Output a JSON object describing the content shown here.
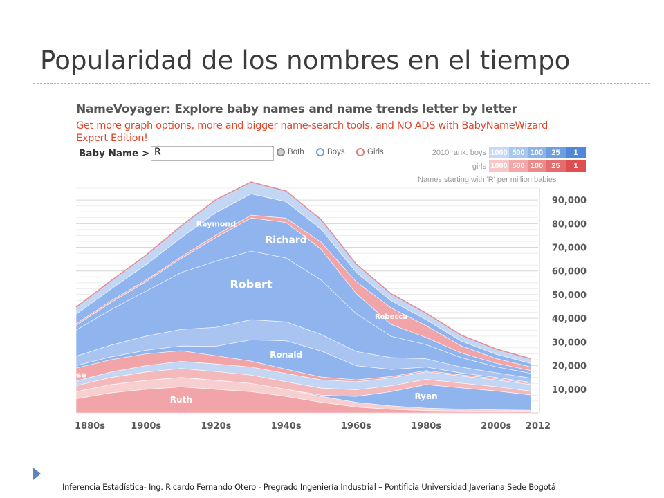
{
  "slide": {
    "title": "Popularidad de los nombres en el tiempo",
    "footer": "Inferencia Estadística- Ing. Ricardo Fernando Otero - Pregrado Ingeniería Industrial – Pontificia Universidad Javeriana Sede Bogotá",
    "page_number": ""
  },
  "namevoyager": {
    "brand": "NameVoyager",
    "tagline": ": Explore baby names and name trends letter by letter",
    "promo": "Get more graph options, more and bigger name-search tools, and NO ADS with BabyNameWizard Expert Edition!",
    "search_label": "Baby Name >",
    "search_value": "R",
    "filters": {
      "both": "Both",
      "boys": "Boys",
      "girls": "Girls"
    },
    "rank": {
      "boys_label": "2010 rank:  boys",
      "girls_label": "girls",
      "cells": [
        "1000",
        "500",
        "100",
        "25",
        "1"
      ],
      "boys_colors": [
        "#c4d9f5",
        "#a8c7ef",
        "#8ab4e8",
        "#6d9fe0",
        "#4f88d8"
      ],
      "girls_colors": [
        "#f7c6c6",
        "#f2a8a8",
        "#ec8a8a",
        "#e56c6c",
        "#de4e4e"
      ]
    },
    "units_caption": "Names starting with 'R' per million babies"
  },
  "colors": {
    "boy": "#8fb4ee",
    "girl": "#f2a5a8",
    "light_boy": "#c3d6f4",
    "light_girl": "#f8cfd0",
    "outline": "#e88a90"
  },
  "chart_data": {
    "type": "area",
    "stacked": true,
    "title": "",
    "xlabel": "",
    "ylabel": "",
    "x": [
      1880,
      1890,
      1900,
      1910,
      1920,
      1930,
      1940,
      1950,
      1960,
      1970,
      1980,
      1990,
      2000,
      2010
    ],
    "x_tick_labels": [
      "1880s",
      "1900s",
      "1920s",
      "1940s",
      "1960s",
      "1980s",
      "2000s",
      "2012"
    ],
    "x_tick_values": [
      1880,
      1900,
      1920,
      1940,
      1960,
      1980,
      2000,
      2012
    ],
    "ylim": [
      0,
      95000
    ],
    "y_ticks": [
      10000,
      20000,
      30000,
      40000,
      50000,
      60000,
      70000,
      80000,
      90000
    ],
    "y_tick_labels": [
      "10,000",
      "20,000",
      "30,000",
      "40,000",
      "50,000",
      "60,000",
      "70,000",
      "80,000",
      "90,000"
    ],
    "grid": true,
    "series": [
      {
        "name": "Ruth",
        "gender": "girl",
        "values": [
          6000,
          8500,
          10000,
          11000,
          10000,
          9000,
          7000,
          4500,
          2500,
          1500,
          1000,
          800,
          700,
          600
        ]
      },
      {
        "name": "",
        "gender": "girl",
        "values": [
          3000,
          3500,
          3800,
          4000,
          3800,
          3500,
          3000,
          2500,
          2000,
          1500,
          1000,
          800,
          600,
          500
        ]
      },
      {
        "name": "Ryan",
        "gender": "boy",
        "values": [
          0,
          0,
          0,
          0,
          0,
          0,
          0,
          500,
          2500,
          6000,
          10000,
          9000,
          8000,
          6500
        ]
      },
      {
        "name": "",
        "gender": "girl",
        "values": [
          2500,
          3000,
          3500,
          3800,
          3700,
          3500,
          3200,
          3000,
          2800,
          2500,
          2200,
          2000,
          1800,
          1600
        ]
      },
      {
        "name": "",
        "gender": "boy",
        "values": [
          2000,
          2300,
          2700,
          3000,
          3200,
          3400,
          3500,
          3500,
          3400,
          3300,
          3200,
          3000,
          2900,
          2800
        ]
      },
      {
        "name": "Rose",
        "gender": "girl",
        "values": [
          5500,
          5200,
          5000,
          4500,
          3500,
          2500,
          1800,
          1200,
          800,
          600,
          500,
          500,
          500,
          500
        ]
      },
      {
        "name": "Ronald",
        "gender": "boy",
        "values": [
          1000,
          1200,
          1500,
          2000,
          4000,
          9000,
          12000,
          11000,
          6000,
          3000,
          1500,
          800,
          500,
          400
        ]
      },
      {
        "name": "",
        "gender": "boy",
        "values": [
          4000,
          5000,
          6000,
          7000,
          8000,
          8500,
          8000,
          7000,
          6000,
          5000,
          3500,
          2500,
          2000,
          1800
        ]
      },
      {
        "name": "Robert",
        "gender": "boy",
        "values": [
          11000,
          15000,
          19000,
          24000,
          28000,
          29000,
          27000,
          23000,
          16000,
          9000,
          6000,
          4000,
          2500,
          2000
        ]
      },
      {
        "name": "Richard",
        "gender": "boy",
        "values": [
          2000,
          3000,
          4000,
          6000,
          10000,
          14000,
          15000,
          13000,
          8500,
          5000,
          3000,
          2000,
          1500,
          1200
        ]
      },
      {
        "name": "Rebecca",
        "gender": "girl",
        "values": [
          700,
          700,
          700,
          700,
          1000,
          1200,
          1800,
          3000,
          5000,
          7000,
          5000,
          3000,
          2000,
          1500
        ]
      },
      {
        "name": "Raymond",
        "gender": "boy",
        "values": [
          4000,
          5000,
          6500,
          8000,
          9500,
          9000,
          7000,
          5500,
          4000,
          3000,
          2500,
          2000,
          1800,
          1500
        ]
      },
      {
        "name": "",
        "gender": "boy",
        "values": [
          3000,
          3500,
          4000,
          5000,
          5500,
          5000,
          4500,
          4000,
          3500,
          3000,
          2800,
          2500,
          2200,
          2000
        ]
      }
    ]
  }
}
